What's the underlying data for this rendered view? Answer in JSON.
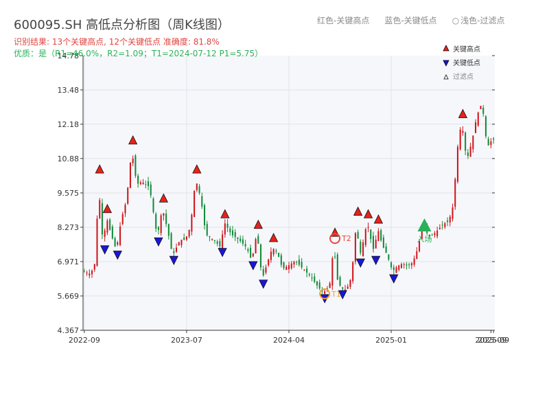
{
  "header": {
    "title": "600095.SH 高低点分析图（周K线图）",
    "legend": {
      "red": "红色-关键高点",
      "blue": "蓝色-关键低点",
      "light": "浅色-过滤点"
    },
    "result_line": "识别结果: 13个关键高点, 12个关键低点  准确度: 81.8%",
    "quality_line": "优质：是（R1=46.0%，R2=1.09；T1=2024-07-12 P1=5.75）"
  },
  "colors": {
    "up": "#d0141b",
    "down": "#128a3a",
    "high_marker": "#e8211b",
    "low_marker": "#1a16d8",
    "t1": "#f0a030",
    "t2": "#e8473f",
    "entry": "#2bb05a",
    "grid": "#dfe3ea",
    "plot_bg": "#f6f7fa"
  },
  "chart_data": {
    "type": "candlestick",
    "ylim": [
      4.367,
      14.78
    ],
    "y_ticks": [
      "4.367",
      "5.669",
      "6.971",
      "8.273",
      "9.575",
      "10.88",
      "12.18",
      "13.48",
      "14.78"
    ],
    "x_ticks": [
      "2022-09",
      "2023-07",
      "2024-04",
      "2025-01",
      "2025-09",
      "2025-09"
    ],
    "x_tick_weeks": [
      0,
      40,
      80,
      120,
      159,
      160
    ],
    "key_levels": [
      {
        "w": 6,
        "v": 10.3
      },
      {
        "w": 9,
        "v": 8.8
      },
      {
        "w": 19,
        "v": 11.4
      },
      {
        "w": 31,
        "v": 9.2
      },
      {
        "w": 44,
        "v": 10.3
      },
      {
        "w": 55,
        "v": 8.6
      },
      {
        "w": 68,
        "v": 8.2
      },
      {
        "w": 74,
        "v": 7.7
      },
      {
        "w": 98,
        "v": 7.9
      },
      {
        "w": 107,
        "v": 8.7
      },
      {
        "w": 111,
        "v": 8.6
      },
      {
        "w": 115,
        "v": 8.4
      },
      {
        "w": 148,
        "v": 12.4
      }
    ],
    "key_lows": [
      {
        "w": 8,
        "v": 7.6
      },
      {
        "w": 13,
        "v": 7.4
      },
      {
        "w": 29,
        "v": 7.9
      },
      {
        "w": 35,
        "v": 7.2
      },
      {
        "w": 54,
        "v": 7.5
      },
      {
        "w": 66,
        "v": 7.0
      },
      {
        "w": 70,
        "v": 6.3
      },
      {
        "w": 94,
        "v": 5.75
      },
      {
        "w": 101,
        "v": 5.9
      },
      {
        "w": 108,
        "v": 7.1
      },
      {
        "w": 114,
        "v": 7.2
      },
      {
        "w": 121,
        "v": 6.5
      }
    ],
    "filtered_points": [],
    "annotations": [
      {
        "type": "T1",
        "w": 94,
        "v": 5.75,
        "label": "T1"
      },
      {
        "type": "T2",
        "w": 98,
        "v": 7.85,
        "label": "T2"
      },
      {
        "type": "entry",
        "w": 133,
        "v": 8.35,
        "label": "入场"
      }
    ],
    "series_points": [
      [
        0,
        6.6
      ],
      [
        3,
        6.5
      ],
      [
        5,
        7.0
      ],
      [
        6,
        10.2
      ],
      [
        7,
        8.4
      ],
      [
        8,
        7.6
      ],
      [
        9,
        8.7
      ],
      [
        11,
        8.0
      ],
      [
        13,
        7.4
      ],
      [
        15,
        8.6
      ],
      [
        17,
        9.3
      ],
      [
        19,
        11.2
      ],
      [
        21,
        9.9
      ],
      [
        23,
        10.0
      ],
      [
        26,
        9.8
      ],
      [
        29,
        7.9
      ],
      [
        31,
        9.0
      ],
      [
        33,
        8.2
      ],
      [
        35,
        7.2
      ],
      [
        38,
        7.8
      ],
      [
        40,
        7.8
      ],
      [
        42,
        8.3
      ],
      [
        44,
        10.1
      ],
      [
        46,
        9.4
      ],
      [
        48,
        8.0
      ],
      [
        51,
        7.8
      ],
      [
        54,
        7.5
      ],
      [
        55,
        8.5
      ],
      [
        58,
        8.0
      ],
      [
        61,
        7.8
      ],
      [
        64,
        7.5
      ],
      [
        66,
        7.0
      ],
      [
        68,
        8.1
      ],
      [
        70,
        6.3
      ],
      [
        72,
        6.9
      ],
      [
        74,
        7.5
      ],
      [
        76,
        7.3
      ],
      [
        78,
        6.7
      ],
      [
        80,
        6.8
      ],
      [
        83,
        7.0
      ],
      [
        86,
        6.7
      ],
      [
        89,
        6.4
      ],
      [
        92,
        6.0
      ],
      [
        94,
        5.8
      ],
      [
        96,
        6.0
      ],
      [
        97,
        6.3
      ],
      [
        98,
        7.9
      ],
      [
        99,
        6.4
      ],
      [
        101,
        5.95
      ],
      [
        103,
        5.9
      ],
      [
        105,
        6.4
      ],
      [
        107,
        8.6
      ],
      [
        108,
        7.1
      ],
      [
        110,
        7.9
      ],
      [
        111,
        8.5
      ],
      [
        113,
        7.6
      ],
      [
        114,
        7.3
      ],
      [
        115,
        8.3
      ],
      [
        117,
        7.6
      ],
      [
        119,
        7.2
      ],
      [
        121,
        6.6
      ],
      [
        123,
        6.8
      ],
      [
        125,
        6.9
      ],
      [
        127,
        6.8
      ],
      [
        129,
        6.95
      ],
      [
        131,
        7.5
      ],
      [
        133,
        8.5
      ],
      [
        135,
        7.9
      ],
      [
        137,
        8.0
      ],
      [
        139,
        8.2
      ],
      [
        141,
        8.4
      ],
      [
        143,
        8.5
      ],
      [
        145,
        9.2
      ],
      [
        146,
        11.0
      ],
      [
        148,
        12.3
      ],
      [
        150,
        10.8
      ],
      [
        152,
        11.5
      ],
      [
        154,
        12.5
      ],
      [
        156,
        13.0
      ],
      [
        158,
        11.3
      ],
      [
        160,
        11.6
      ]
    ]
  }
}
